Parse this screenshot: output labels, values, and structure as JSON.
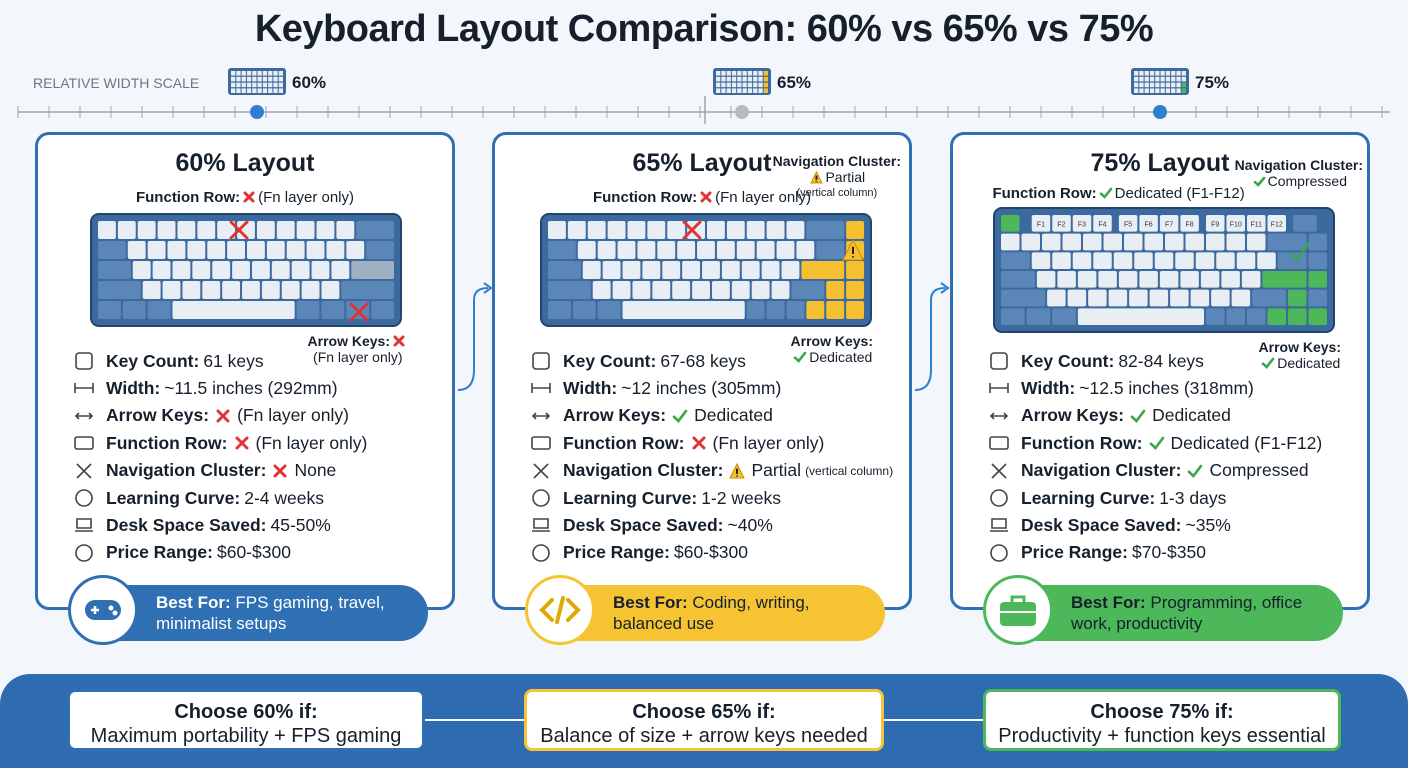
{
  "title": "Keyboard Layout Comparison: 60% vs 65% vs 75%",
  "scale": {
    "label": "RELATIVE WIDTH SCALE",
    "markers": [
      "60%",
      "65%",
      "75%"
    ]
  },
  "cards": [
    {
      "title": "60% Layout",
      "color": "#2f6fb3",
      "function_row": {
        "label": "Function Row:",
        "text": "(Fn layer only)"
      },
      "arrow_keys": {
        "label": "Arrow Keys:",
        "text": "(Fn layer only)"
      },
      "specs": [
        {
          "label": "Key Count:",
          "value": "61 keys"
        },
        {
          "label": "Width:",
          "value": "~11.5 inches (292mm)"
        },
        {
          "label": "Arrow Keys:",
          "value": "(Fn layer only)"
        },
        {
          "label": "Function Row:",
          "value": "(Fn layer only)"
        },
        {
          "label": "Navigation Cluster:",
          "value": "None"
        },
        {
          "label": "Learning Curve:",
          "value": "2-4 weeks"
        },
        {
          "label": "Desk Space Saved:",
          "value": "45-50%"
        },
        {
          "label": "Price Range:",
          "value": "$60-$300"
        }
      ],
      "best_for": {
        "label": "Best For:",
        "text": "FPS gaming, travel, minimalist setups"
      }
    },
    {
      "title": "65% Layout",
      "color": "#2f6fb3",
      "function_row": {
        "label": "Function Row:",
        "text": "(Fn layer only)"
      },
      "navigation": {
        "label": "Navigation Cluster:",
        "text": "Partial",
        "note": "(vertical column)"
      },
      "arrow_keys": {
        "label": "Arrow Keys:",
        "text": "Dedicated"
      },
      "specs": [
        {
          "label": "Key Count:",
          "value": "67-68 keys"
        },
        {
          "label": "Width:",
          "value": "~12 inches (305mm)"
        },
        {
          "label": "Arrow Keys:",
          "value": "Dedicated"
        },
        {
          "label": "Function Row:",
          "value": "(Fn layer only)"
        },
        {
          "label": "Navigation Cluster:",
          "value": "Partial",
          "note": "(vertical column)"
        },
        {
          "label": "Learning Curve:",
          "value": "1-2 weeks"
        },
        {
          "label": "Desk Space Saved:",
          "value": "~40%"
        },
        {
          "label": "Price Range:",
          "value": "$60-$300"
        }
      ],
      "best_for": {
        "label": "Best For:",
        "text": "Coding, writing, balanced use"
      }
    },
    {
      "title": "75% Layout",
      "color": "#2f6fb3",
      "function_row": {
        "label": "Function Row:",
        "text": "Dedicated (F1-F12)"
      },
      "navigation": {
        "label": "Navigation Cluster:",
        "text": "Compressed"
      },
      "arrow_keys": {
        "label": "Arrow Keys:",
        "text": "Dedicated"
      },
      "function_keys": [
        "F1",
        "F2",
        "F3",
        "F4",
        "F5",
        "F6",
        "F7",
        "F8",
        "F9",
        "F10",
        "F11",
        "F12"
      ],
      "specs": [
        {
          "label": "Key Count:",
          "value": "82-84 keys"
        },
        {
          "label": "Width:",
          "value": "~12.5 inches (318mm)"
        },
        {
          "label": "Arrow Keys:",
          "value": "Dedicated"
        },
        {
          "label": "Function Row:",
          "value": "Dedicated (F1-F12)"
        },
        {
          "label": "Navigation Cluster:",
          "value": "Compressed"
        },
        {
          "label": "Learning Curve:",
          "value": "1-3 days"
        },
        {
          "label": "Desk Space Saved:",
          "value": "~35%"
        },
        {
          "label": "Price Range:",
          "value": "$70-$350"
        }
      ],
      "best_for": {
        "label": "Best For:",
        "text": "Programming, office work, productivity"
      }
    }
  ],
  "choices": [
    {
      "title": "Choose 60% if:",
      "text": "Maximum portability + FPS gaming"
    },
    {
      "title": "Choose 65% if:",
      "text": "Balance of size + arrow keys needed"
    },
    {
      "title": "Choose 75% if:",
      "text": "Productivity + function keys essential"
    }
  ]
}
